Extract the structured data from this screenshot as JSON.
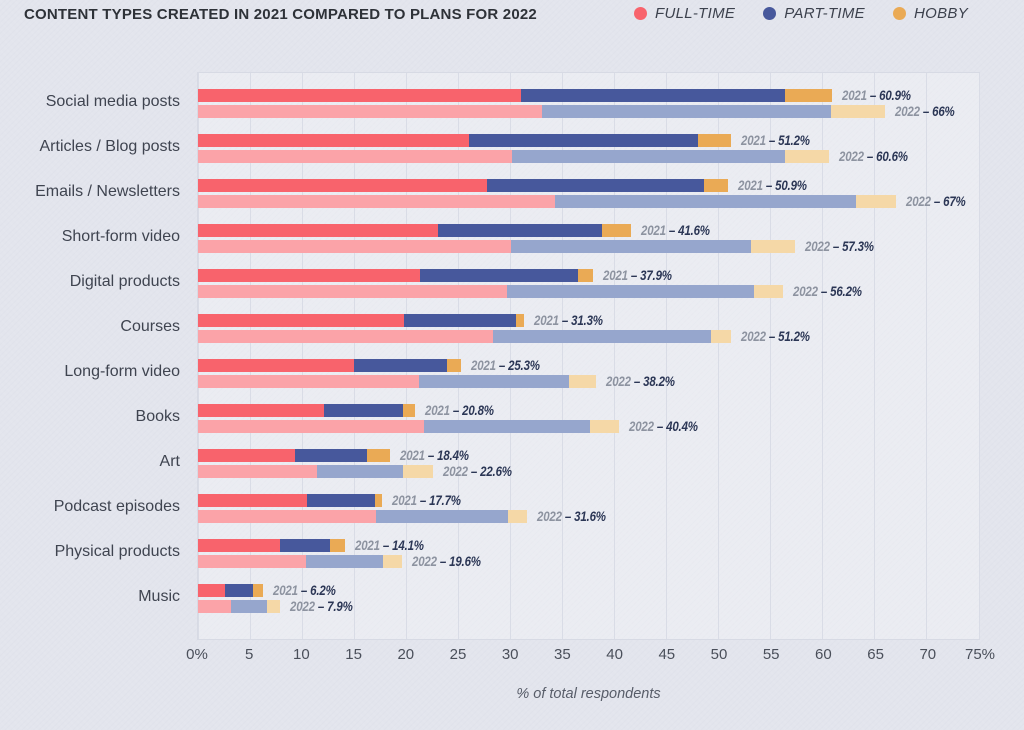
{
  "header": {
    "title": "CONTENT TYPES CREATED IN 2021 COMPARED TO PLANS FOR 2022"
  },
  "legend": {
    "items": [
      {
        "label": "FULL-TIME",
        "color": "#f8636c"
      },
      {
        "label": "PART-TIME",
        "color": "#47589c"
      },
      {
        "label": "HOBBY",
        "color": "#eaaa55"
      }
    ]
  },
  "chart_data": {
    "type": "bar",
    "orientation": "horizontal",
    "stacked": true,
    "title": "CONTENT TYPES CREATED IN 2021 COMPARED TO PLANS FOR 2022",
    "xlabel": "% of total respondents",
    "xlim": [
      0,
      75
    ],
    "x_ticks": [
      "0%",
      "5",
      "10",
      "15",
      "20",
      "25",
      "30",
      "35",
      "40",
      "45",
      "50",
      "55",
      "60",
      "65",
      "70",
      "75%"
    ],
    "grid": true,
    "legend_position": "top-right",
    "series_names": [
      "FULL-TIME",
      "PART-TIME",
      "HOBBY"
    ],
    "colors_2021": [
      "#f8636c",
      "#47589c",
      "#eaaa55"
    ],
    "colors_2022": [
      "#fba3a8",
      "#96a6cd",
      "#f5d8a7"
    ],
    "label_dash": "–",
    "categories": [
      {
        "label": "Social media posts",
        "bars": [
          {
            "year": "2021",
            "total": 60.9,
            "total_label": "60.9%",
            "segments": [
              31.0,
              25.4,
              4.5
            ]
          },
          {
            "year": "2022",
            "total": 66,
            "total_label": "66%",
            "segments": [
              33.0,
              27.8,
              5.2
            ]
          }
        ]
      },
      {
        "label": "Articles / Blog posts",
        "bars": [
          {
            "year": "2021",
            "total": 51.2,
            "total_label": "51.2%",
            "segments": [
              26.0,
              22.0,
              3.2
            ]
          },
          {
            "year": "2022",
            "total": 60.6,
            "total_label": "60.6%",
            "segments": [
              30.2,
              26.2,
              4.2
            ]
          }
        ]
      },
      {
        "label": "Emails / Newsletters",
        "bars": [
          {
            "year": "2021",
            "total": 50.9,
            "total_label": "50.9%",
            "segments": [
              27.8,
              20.8,
              2.3
            ]
          },
          {
            "year": "2022",
            "total": 67,
            "total_label": "67%",
            "segments": [
              34.3,
              28.9,
              3.8
            ]
          }
        ]
      },
      {
        "label": "Short-form video",
        "bars": [
          {
            "year": "2021",
            "total": 41.6,
            "total_label": "41.6%",
            "segments": [
              23.0,
              15.8,
              2.8
            ]
          },
          {
            "year": "2022",
            "total": 57.3,
            "total_label": "57.3%",
            "segments": [
              30.1,
              23.0,
              4.2
            ]
          }
        ]
      },
      {
        "label": "Digital products",
        "bars": [
          {
            "year": "2021",
            "total": 37.9,
            "total_label": "37.9%",
            "segments": [
              21.3,
              15.2,
              1.4
            ]
          },
          {
            "year": "2022",
            "total": 56.2,
            "total_label": "56.2%",
            "segments": [
              29.7,
              23.7,
              2.8
            ]
          }
        ]
      },
      {
        "label": "Courses",
        "bars": [
          {
            "year": "2021",
            "total": 31.3,
            "total_label": "31.3%",
            "segments": [
              19.8,
              10.7,
              0.8
            ]
          },
          {
            "year": "2022",
            "total": 51.2,
            "total_label": "51.2%",
            "segments": [
              28.3,
              21.0,
              1.9
            ]
          }
        ]
      },
      {
        "label": "Long-form video",
        "bars": [
          {
            "year": "2021",
            "total": 25.3,
            "total_label": "25.3%",
            "segments": [
              15.0,
              8.9,
              1.4
            ]
          },
          {
            "year": "2022",
            "total": 38.2,
            "total_label": "38.2%",
            "segments": [
              21.2,
              14.4,
              2.6
            ]
          }
        ]
      },
      {
        "label": "Books",
        "bars": [
          {
            "year": "2021",
            "total": 20.8,
            "total_label": "20.8%",
            "segments": [
              12.1,
              7.6,
              1.1
            ]
          },
          {
            "year": "2022",
            "total": 40.4,
            "total_label": "40.4%",
            "segments": [
              21.7,
              15.9,
              2.8
            ]
          }
        ]
      },
      {
        "label": "Art",
        "bars": [
          {
            "year": "2021",
            "total": 18.4,
            "total_label": "18.4%",
            "segments": [
              9.3,
              6.9,
              2.2
            ]
          },
          {
            "year": "2022",
            "total": 22.6,
            "total_label": "22.6%",
            "segments": [
              11.4,
              8.3,
              2.9
            ]
          }
        ]
      },
      {
        "label": "Podcast episodes",
        "bars": [
          {
            "year": "2021",
            "total": 17.7,
            "total_label": "17.7%",
            "segments": [
              10.5,
              6.5,
              0.7
            ]
          },
          {
            "year": "2022",
            "total": 31.6,
            "total_label": "31.6%",
            "segments": [
              17.1,
              12.7,
              1.8
            ]
          }
        ]
      },
      {
        "label": "Physical products",
        "bars": [
          {
            "year": "2021",
            "total": 14.1,
            "total_label": "14.1%",
            "segments": [
              7.9,
              4.8,
              1.4
            ]
          },
          {
            "year": "2022",
            "total": 19.6,
            "total_label": "19.6%",
            "segments": [
              10.4,
              7.4,
              1.8
            ]
          }
        ]
      },
      {
        "label": "Music",
        "bars": [
          {
            "year": "2021",
            "total": 6.2,
            "total_label": "6.2%",
            "segments": [
              2.6,
              2.7,
              0.9
            ]
          },
          {
            "year": "2022",
            "total": 7.9,
            "total_label": "7.9%",
            "segments": [
              3.2,
              3.4,
              1.3
            ]
          }
        ]
      }
    ]
  }
}
